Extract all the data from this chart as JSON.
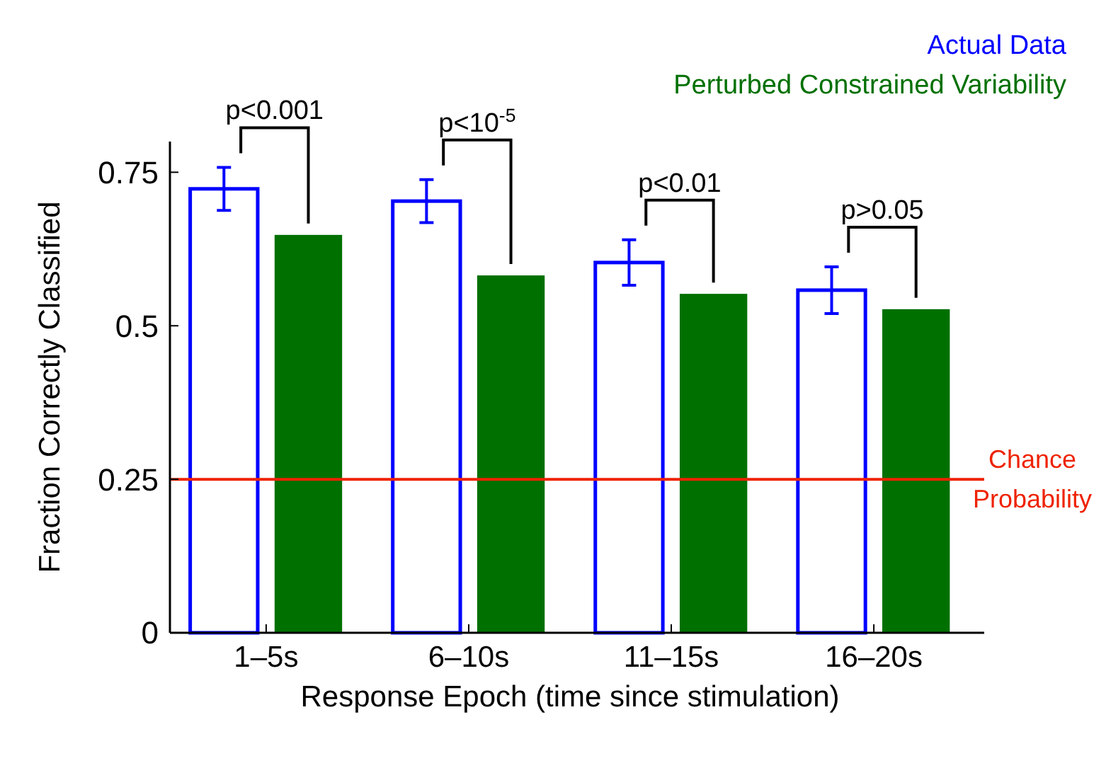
{
  "chart_data": {
    "type": "bar",
    "xlabel": "Response Epoch (time since stimulation)",
    "ylabel": "Fraction Correctly Classified",
    "categories": [
      "1–5s",
      "6–10s",
      "11–15s",
      "16–20s"
    ],
    "series": [
      {
        "name": "Actual Data",
        "color": "#0000ff",
        "values": [
          0.723,
          0.703,
          0.603,
          0.558
        ],
        "errors": [
          0.035,
          0.035,
          0.037,
          0.038
        ]
      },
      {
        "name": "Perturbed Constrained Variability",
        "color": "#007000",
        "values": [
          0.648,
          0.582,
          0.552,
          0.527
        ]
      }
    ],
    "ylim": [
      0,
      0.8
    ],
    "yticks": [
      0,
      0.25,
      0.5,
      0.75
    ],
    "ref_lines": [
      {
        "axis": "y",
        "value": 0.25,
        "label": "Chance Probability",
        "color": "#ee2200"
      }
    ],
    "annotations": [
      "p<0.001",
      "p<10$^{-5}$",
      "p<0.01",
      "p>0.05"
    ],
    "legend": "top right",
    "grid": false
  }
}
